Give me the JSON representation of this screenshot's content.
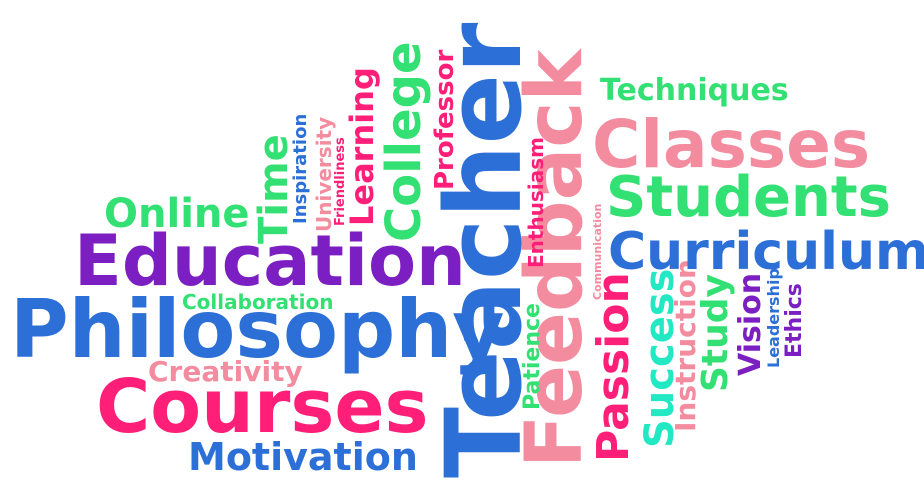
{
  "word_cloud": {
    "words": {
      "teacher": "Teacher",
      "feedback": "Feedback",
      "classes": "Classes",
      "students": "Students",
      "curriculum": "Curriculum",
      "education": "Education",
      "philosophy": "Philosophy",
      "courses": "Courses",
      "motivation": "Motivation",
      "online": "Online",
      "time": "Time",
      "college": "College",
      "learning": "Learning",
      "professor": "Professor",
      "university": "University",
      "inspiration": "Inspiration",
      "friendliness": "Friendliness",
      "techniques": "Techniques",
      "enthusiasm": "Enthusiasm",
      "communication": "Communication",
      "passion": "Passion",
      "success": "Success",
      "instruction": "Instruction",
      "study": "Study",
      "vision": "Vision",
      "leadership": "Leadership",
      "ethics": "Ethics",
      "patience": "Patience",
      "collaboration": "Collaboration",
      "creativity": "Creativity"
    },
    "colors": {
      "pink": "#ff1f78",
      "salmon": "#f48ca0",
      "purple": "#7b1fc2",
      "blue": "#2c6fd6",
      "green": "#33e073",
      "teal": "#22e8c4"
    }
  }
}
